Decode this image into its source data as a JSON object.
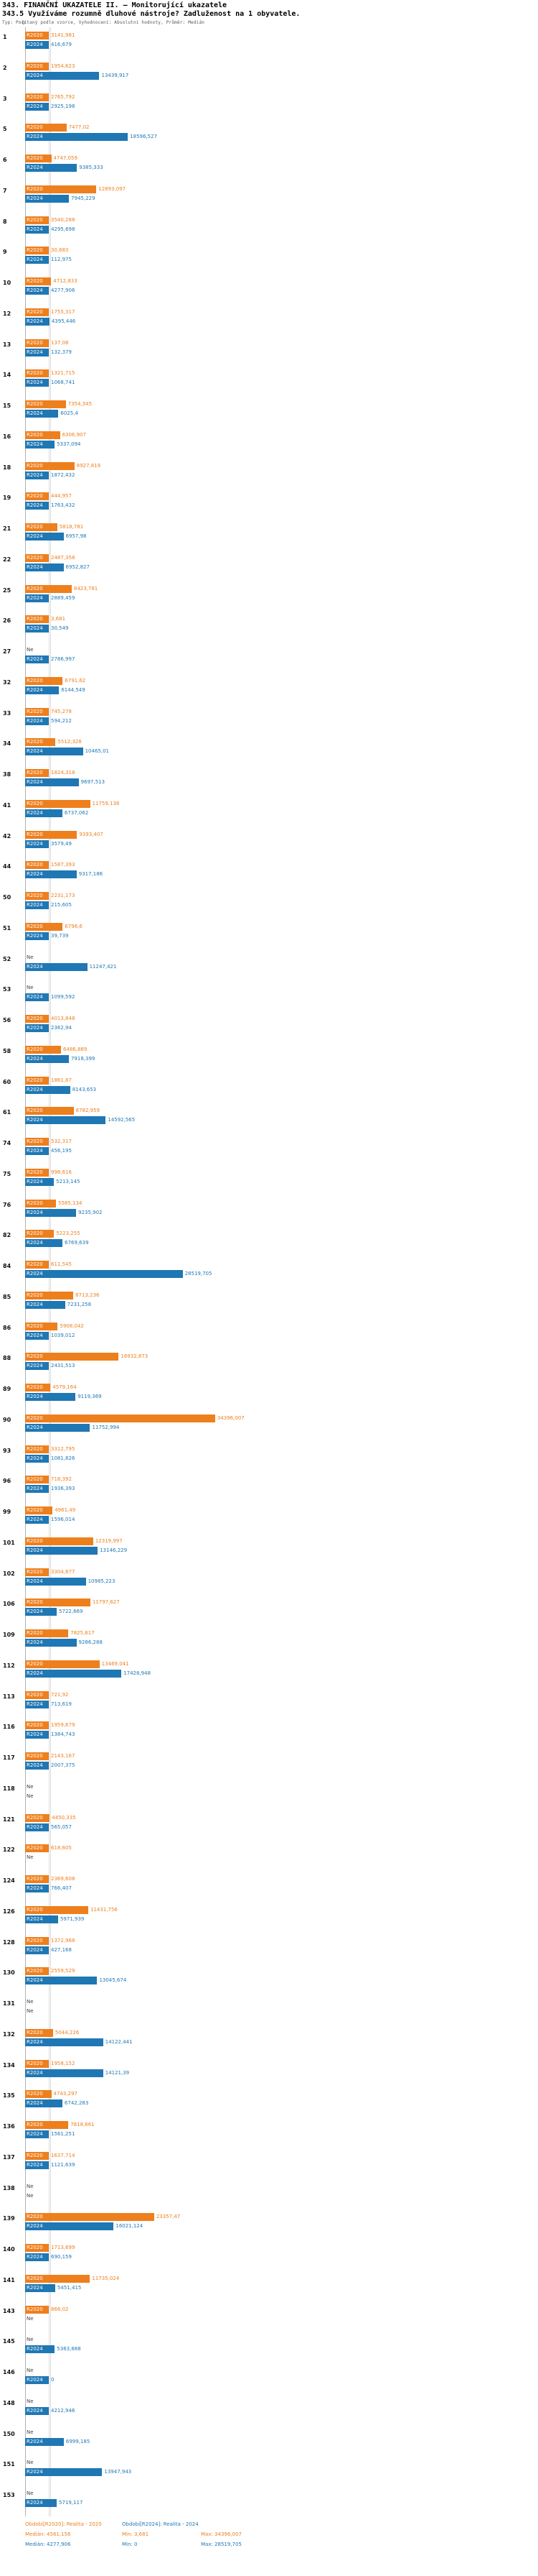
{
  "chart_data": {
    "type": "bar",
    "orientation": "horizontal",
    "title": "343. FINANČNÍ UKAZATELE II. — Monitorující ukazatele",
    "subtitle": "343.5 Využíváme rozumně dluhové nástroje? Zadluženost na 1 obyvatele.",
    "meta": "Typ: Počítaný podle vzorce, Vyhodnocení: Absolutní hodnoty, Průměr: Medián",
    "x_tick_labels": [
      "0"
    ],
    "xlim": [
      0,
      36000
    ],
    "grid": false,
    "legend_position": "bottom",
    "missing_label": "Ne",
    "series": [
      {
        "name": "R2020",
        "legend": "Období[R2020]: Realita - 2020",
        "color": "#ee7f1d",
        "median": 4561.156,
        "median_label": "Medián: 4561,156",
        "min_label": "Min: 3,681",
        "max_label": "Max: 34396,007"
      },
      {
        "name": "R2024",
        "legend": "Období[R2024]: Realita - 2024",
        "color": "#1f77b4",
        "median": 4277.906,
        "median_label": "Medián: 4277,906",
        "min_label": "Min: 0",
        "max_label": "Max: 28519,705"
      }
    ],
    "rows": [
      {
        "id": "1",
        "values": [
          "3141,981",
          "416,679"
        ]
      },
      {
        "id": "2",
        "values": [
          "1954,623",
          "13439,917"
        ]
      },
      {
        "id": "3",
        "values": [
          "2765,792",
          "2925,198"
        ]
      },
      {
        "id": "5",
        "values": [
          "7477,02",
          "18596,527"
        ]
      },
      {
        "id": "6",
        "values": [
          "4747,059",
          "9385,333"
        ]
      },
      {
        "id": "7",
        "values": [
          "12893,097",
          "7945,229"
        ]
      },
      {
        "id": "8",
        "values": [
          "3540,288",
          "4295,698"
        ]
      },
      {
        "id": "9",
        "values": [
          "30,683",
          "112,975"
        ]
      },
      {
        "id": "10",
        "values": [
          "4712,833",
          "4277,906"
        ]
      },
      {
        "id": "12",
        "values": [
          "1755,317",
          "4395,446"
        ]
      },
      {
        "id": "13",
        "values": [
          "137,08",
          "132,379"
        ]
      },
      {
        "id": "14",
        "values": [
          "1321,715",
          "1068,741"
        ]
      },
      {
        "id": "15",
        "values": [
          "7354,345",
          "6025,4"
        ]
      },
      {
        "id": "16",
        "values": [
          "6306,907",
          "5337,094"
        ]
      },
      {
        "id": "18",
        "values": [
          "8927,819",
          "1872,432"
        ]
      },
      {
        "id": "19",
        "values": [
          "444,957",
          "1763,432"
        ]
      },
      {
        "id": "21",
        "values": [
          "5818,781",
          "6957,98"
        ]
      },
      {
        "id": "22",
        "values": [
          "2487,358",
          "6952,827"
        ]
      },
      {
        "id": "25",
        "values": [
          "8423,781",
          "2889,459"
        ]
      },
      {
        "id": "26",
        "values": [
          "3,681",
          "30,549"
        ]
      },
      {
        "id": "27",
        "values": [
          "Ne",
          "2786,997"
        ]
      },
      {
        "id": "32",
        "values": [
          "6791,62",
          "6144,549"
        ]
      },
      {
        "id": "33",
        "values": [
          "745,278",
          "594,212"
        ]
      },
      {
        "id": "34",
        "values": [
          "5512,328",
          "10465,01"
        ]
      },
      {
        "id": "38",
        "values": [
          "1824,318",
          "9697,513"
        ]
      },
      {
        "id": "41",
        "values": [
          "11759,138",
          "6737,062"
        ]
      },
      {
        "id": "42",
        "values": [
          "9393,407",
          "3579,49"
        ]
      },
      {
        "id": "44",
        "values": [
          "1587,393",
          "9317,186"
        ]
      },
      {
        "id": "50",
        "values": [
          "2231,173",
          "215,605"
        ]
      },
      {
        "id": "51",
        "values": [
          "6796,6",
          "39,739"
        ]
      },
      {
        "id": "52",
        "values": [
          "Ne",
          "11247,421"
        ]
      },
      {
        "id": "53",
        "values": [
          "Ne",
          "1099,592"
        ]
      },
      {
        "id": "56",
        "values": [
          "4013,848",
          "2362,94"
        ]
      },
      {
        "id": "58",
        "values": [
          "6486,889",
          "7918,399"
        ]
      },
      {
        "id": "60",
        "values": [
          "1861,87",
          "8143,653"
        ]
      },
      {
        "id": "61",
        "values": [
          "8782,959",
          "14592,565"
        ]
      },
      {
        "id": "74",
        "values": [
          "532,317",
          "456,195"
        ]
      },
      {
        "id": "75",
        "values": [
          "998,616",
          "5213,145"
        ]
      },
      {
        "id": "76",
        "values": [
          "5585,134",
          "9235,902"
        ]
      },
      {
        "id": "82",
        "values": [
          "5223,255",
          "6769,639"
        ]
      },
      {
        "id": "84",
        "values": [
          "611,545",
          "28519,705"
        ]
      },
      {
        "id": "85",
        "values": [
          "8713,236",
          "7231,258"
        ]
      },
      {
        "id": "86",
        "values": [
          "5908,042",
          "1039,012"
        ]
      },
      {
        "id": "88",
        "values": [
          "16932,873",
          "2431,513"
        ]
      },
      {
        "id": "89",
        "values": [
          "4579,164",
          "9119,369"
        ]
      },
      {
        "id": "90",
        "values": [
          "34396,007",
          "11752,994"
        ]
      },
      {
        "id": "93",
        "values": [
          "3312,795",
          "1081,826"
        ]
      },
      {
        "id": "96",
        "values": [
          "718,392",
          "1936,393"
        ]
      },
      {
        "id": "99",
        "values": [
          "4961,49",
          "1596,014"
        ]
      },
      {
        "id": "101",
        "values": [
          "12319,997",
          "13146,229"
        ]
      },
      {
        "id": "102",
        "values": [
          "3304,877",
          "10985,223"
        ]
      },
      {
        "id": "106",
        "values": [
          "11797,627",
          "5722,669"
        ]
      },
      {
        "id": "109",
        "values": [
          "7825,617",
          "9286,288"
        ]
      },
      {
        "id": "112",
        "values": [
          "13469,041",
          "17428,948"
        ]
      },
      {
        "id": "113",
        "values": [
          "721,92",
          "713,619"
        ]
      },
      {
        "id": "116",
        "values": [
          "1959,679",
          "1384,743"
        ]
      },
      {
        "id": "117",
        "values": [
          "2143,167",
          "2007,375"
        ]
      },
      {
        "id": "118",
        "values": [
          "Ne",
          "Ne"
        ]
      },
      {
        "id": "121",
        "values": [
          "4450,335",
          "565,057"
        ]
      },
      {
        "id": "122",
        "values": [
          "618,605",
          "Ne"
        ]
      },
      {
        "id": "124",
        "values": [
          "2369,608",
          "766,407"
        ]
      },
      {
        "id": "126",
        "values": [
          "11431,756",
          "5971,939"
        ]
      },
      {
        "id": "128",
        "values": [
          "1372,968",
          "427,168"
        ]
      },
      {
        "id": "130",
        "values": [
          "2559,529",
          "13045,674"
        ]
      },
      {
        "id": "131",
        "values": [
          "Ne",
          "Ne"
        ]
      },
      {
        "id": "132",
        "values": [
          "5044,226",
          "14122,441"
        ]
      },
      {
        "id": "134",
        "values": [
          "1958,152",
          "14121,39"
        ]
      },
      {
        "id": "135",
        "values": [
          "4743,297",
          "6742,283"
        ]
      },
      {
        "id": "136",
        "values": [
          "7818,661",
          "1561,251"
        ]
      },
      {
        "id": "137",
        "values": [
          "1637,714",
          "1121,639"
        ]
      },
      {
        "id": "138",
        "values": [
          "Ne",
          "Ne"
        ]
      },
      {
        "id": "139",
        "values": [
          "23357,47",
          "16021,124"
        ]
      },
      {
        "id": "140",
        "values": [
          "1713,699",
          "690,159"
        ]
      },
      {
        "id": "141",
        "values": [
          "11735,024",
          "5451,415"
        ]
      },
      {
        "id": "143",
        "values": [
          "868,02",
          "Ne"
        ]
      },
      {
        "id": "145",
        "values": [
          "Ne",
          "5363,688"
        ]
      },
      {
        "id": "146",
        "values": [
          "Ne",
          "0"
        ]
      },
      {
        "id": "148",
        "values": [
          "Ne",
          "4212,946"
        ]
      },
      {
        "id": "150",
        "values": [
          "Ne",
          "6999,185"
        ]
      },
      {
        "id": "151",
        "values": [
          "Ne",
          "13947,943"
        ]
      },
      {
        "id": "153",
        "values": [
          "Ne",
          "5719,117"
        ]
      }
    ]
  }
}
